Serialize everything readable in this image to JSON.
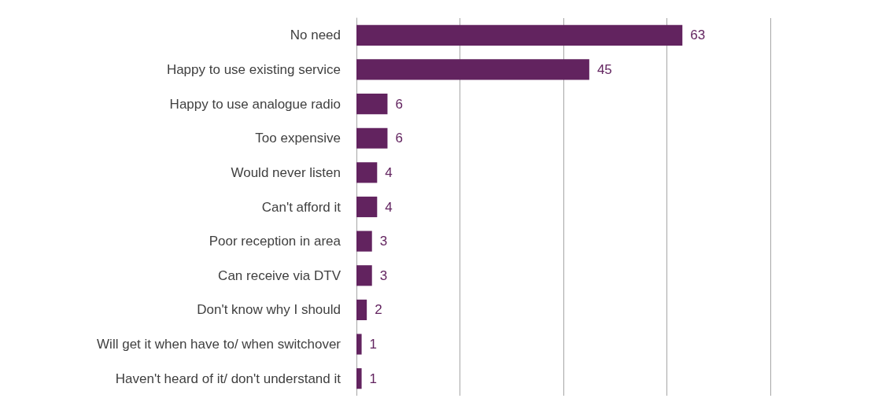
{
  "chart_data": {
    "type": "bar",
    "orientation": "horizontal",
    "categories": [
      "No need",
      "Happy to use existing service",
      "Happy to use analogue radio",
      "Too expensive",
      "Would never listen",
      "Can't afford it",
      "Poor reception in area",
      "Can receive via DTV",
      "Don't know why I should",
      "Will get it when have to/ when switchover",
      "Haven't heard of it/ don't understand it"
    ],
    "values": [
      63,
      45,
      6,
      6,
      4,
      4,
      3,
      3,
      2,
      1,
      1
    ],
    "color": "#62235f",
    "xlim": [
      0,
      80
    ],
    "xticks": [
      {
        "value": 0,
        "label": null
      },
      {
        "value": 20,
        "label": null
      },
      {
        "value": 40,
        "label": null
      },
      {
        "value": 60,
        "label": null
      },
      {
        "value": 80,
        "label": null
      }
    ],
    "grid": "x",
    "tick_labels": "y",
    "data_labels": true
  }
}
